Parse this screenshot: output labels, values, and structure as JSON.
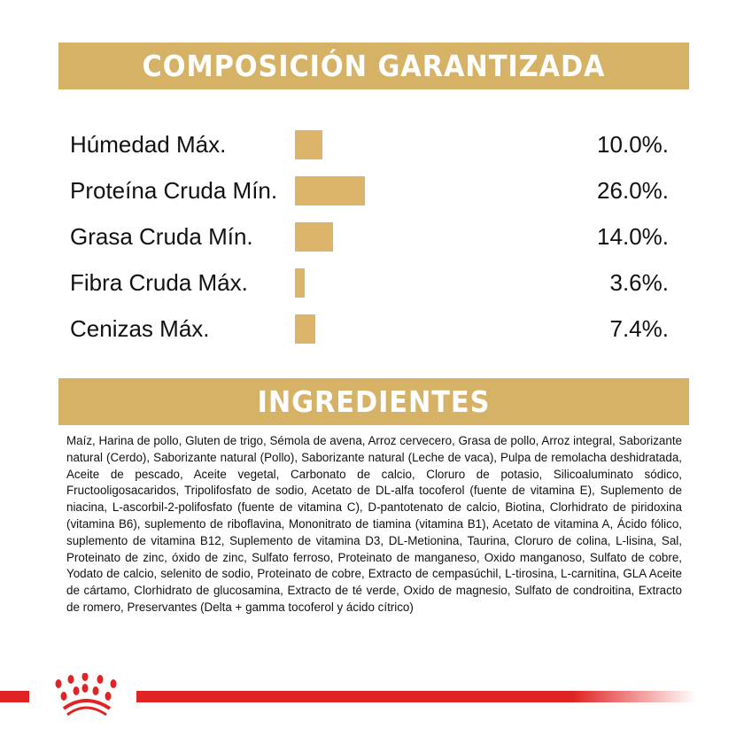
{
  "composition": {
    "title": "COMPOSICIÓN GARANTIZADA",
    "rows": [
      {
        "label": "Húmedad Máx.",
        "value_text": "10.0%.",
        "value": 10.0
      },
      {
        "label": "Proteína Cruda Mín.",
        "value_text": "26.0%.",
        "value": 26.0
      },
      {
        "label": "Grasa Cruda Mín.",
        "value_text": "14.0%.",
        "value": 14.0
      },
      {
        "label": "Fibra Cruda Máx.",
        "value_text": "3.6%.",
        "value": 3.6
      },
      {
        "label": "Cenizas Máx.",
        "value_text": "7.4%.",
        "value": 7.4
      }
    ]
  },
  "ingredients": {
    "title": "INGREDIENTES",
    "text": "Maíz, Harina de pollo, Gluten de trigo, Sémola de avena, Arroz cervecero, Grasa de pollo, Arroz integral, Saborizante natural (Cerdo), Saborizante natural (Pollo), Saborizante natural (Leche de vaca), Pulpa de remolacha deshidratada, Aceite de pescado, Aceite vegetal, Carbonato de calcio, Cloruro de potasio, Silicoaluminato sódico, Fructooligosacaridos, Tripolifosfato de sodio, Acetato de DL-alfa tocoferol (fuente de vitamina E), Suplemento de niacina, L-ascorbil-2-polifosfato (fuente de vitamina C), D-pantotenato de calcio, Biotina, Clorhidrato de piridoxina (vitamina B6), suplemento de riboflavina, Mononitrato de tiamina (vitamina B1), Acetato de vitamina A, Ácido fólico, suplemento de vitamina B12, Suplemento de vitamina D3, DL-Metionina, Taurina, Cloruro de colina, L-lisina, Sal, Proteinato de zinc, óxido de zinc, Sulfato ferroso, Proteinato de manganeso, Oxido manganoso, Sulfato de cobre, Yodato de calcio, selenito de sodio, Proteinato de cobre, Extracto de cempasúchil, L-tirosina, L-carnitina, GLA Aceite de cártamo, Clorhidrato de glucosamina, Extracto de té verde, Oxido de magnesio, Sulfato de condroitina, Extracto de romero, Preservantes (Delta + gamma tocoferol y ácido cítrico)"
  },
  "colors": {
    "gold": "#d6b266",
    "bar": "#dcb46a",
    "brand_red": "#e02424"
  },
  "logo": {
    "icon": "royal-canin-crown-icon"
  }
}
